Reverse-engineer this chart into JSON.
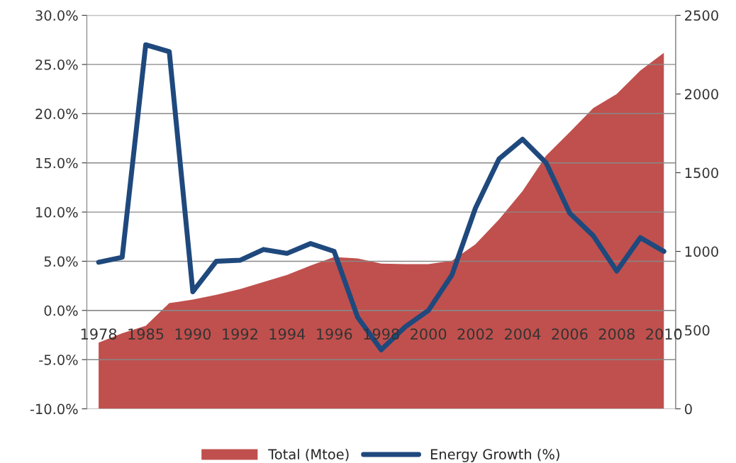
{
  "chart_data": {
    "type": "line",
    "categories": [
      "1978",
      null,
      "1985",
      null,
      "1990",
      null,
      "1992",
      null,
      "1994",
      null,
      "1996",
      null,
      "1998",
      null,
      "2000",
      null,
      "2002",
      null,
      "2004",
      null,
      "2006",
      null,
      "2008",
      null,
      "2010"
    ],
    "series": [
      {
        "name": "Total (Mtoe)",
        "type": "area",
        "axis": "y2",
        "color": "#c0504d",
        "values": [
          420,
          480,
          527,
          671,
          694,
          725,
          761,
          806,
          851,
          910,
          964,
          955,
          923,
          919,
          919,
          941,
          1045,
          1203,
          1383,
          1608,
          1757,
          1910,
          2000,
          2149,
          2261
        ]
      },
      {
        "name": "Energy Growth (%)",
        "color": "#1f497d",
        "values": [
          4.9,
          5.4,
          27.0,
          26.3,
          1.9,
          5.0,
          5.1,
          6.2,
          5.8,
          6.8,
          6.0,
          -0.7,
          -4.0,
          -1.7,
          0.0,
          3.6,
          10.4,
          15.4,
          17.4,
          15.0,
          9.9,
          7.6,
          4.0,
          7.4,
          6.0
        ]
      }
    ],
    "ylim": [
      -10,
      30
    ],
    "yticks": [
      {
        "value": -10,
        "label": "-10.0%"
      },
      {
        "value": -5,
        "label": "-5.0%"
      },
      {
        "value": 0,
        "label": "0.0%"
      },
      {
        "value": 5,
        "label": "5.0%"
      },
      {
        "value": 10,
        "label": "10.0%"
      },
      {
        "value": 15,
        "label": "15.0%"
      },
      {
        "value": 20,
        "label": "20.0%"
      },
      {
        "value": 25,
        "label": "25.0%"
      },
      {
        "value": 30,
        "label": "30.0%"
      }
    ],
    "y2lim": [
      0,
      2500
    ],
    "y2ticks": [
      0,
      500,
      1000,
      1500,
      2000,
      2500
    ],
    "grid": "y",
    "legend": "bottom"
  }
}
